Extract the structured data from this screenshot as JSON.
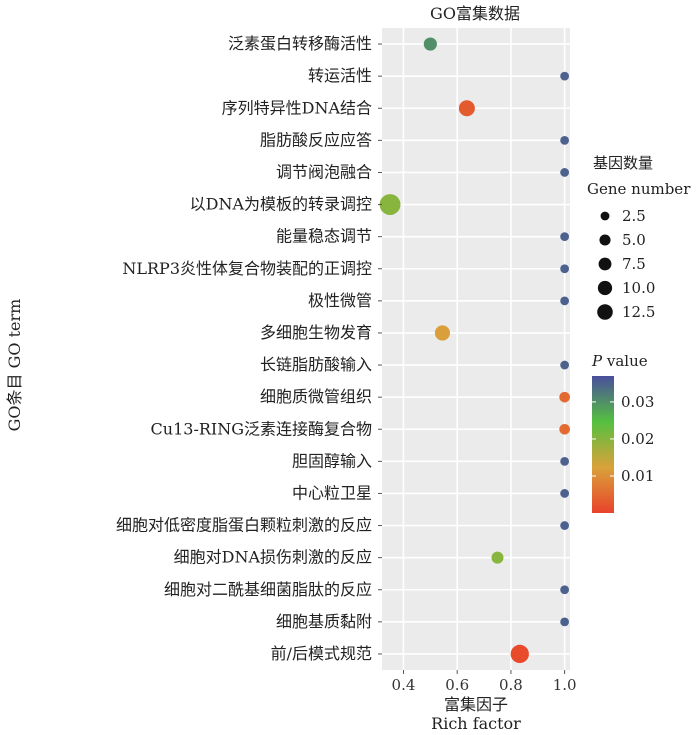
{
  "chart_data": {
    "type": "scatter",
    "title": "GO富集数据",
    "xlabel_cn": "富集因子",
    "xlabel_en": "Rich factor",
    "ylabel": "GO条目  GO term",
    "xlim": [
      0.32,
      1.02
    ],
    "x_ticks": [
      "0.4",
      "0.6",
      "0.8",
      "1.0"
    ],
    "terms": [
      "泛素蛋白转移酶活性",
      "转运活性",
      "序列特异性DNA结合",
      "脂肪酸反应应答",
      "调节阀泡融合",
      "以DNA为模板的转录调控",
      "能量稳态调节",
      "NLRP3炎性体复合物装配的正调控",
      "极性微管",
      "多细胞生物发育",
      "长链脂肪酸输入",
      "细胞质微管组织",
      "Cu13-RING泛素连接酶复合物",
      "胆固醇输入",
      "中心粒卫星",
      "细胞对低密度脂蛋白颗粒刺激的反应",
      "细胞对DNA损伤刺激的反应",
      "细胞对二酰基细菌脂肽的反应",
      "细胞基质黏附",
      "前/后模式规范"
    ],
    "points": [
      {
        "term": "泛素蛋白转移酶活性",
        "x": 0.5,
        "gene_number": 4,
        "p_value": 0.03
      },
      {
        "term": "转运活性",
        "x": 1.0,
        "gene_number": 1,
        "p_value": 0.035
      },
      {
        "term": "序列特异性DNA结合",
        "x": 0.636,
        "gene_number": 7,
        "p_value": 0.003
      },
      {
        "term": "脂肪酸反应应答",
        "x": 1.0,
        "gene_number": 1,
        "p_value": 0.035
      },
      {
        "term": "调节阀泡融合",
        "x": 1.0,
        "gene_number": 1,
        "p_value": 0.035
      },
      {
        "term": "以DNA为模板的转录调控",
        "x": 0.35,
        "gene_number": 14,
        "p_value": 0.02
      },
      {
        "term": "能量稳态调节",
        "x": 1.0,
        "gene_number": 1,
        "p_value": 0.035
      },
      {
        "term": "NLRP3炎性体复合物装配的正调控",
        "x": 1.0,
        "gene_number": 1,
        "p_value": 0.035
      },
      {
        "term": "极性微管",
        "x": 1.0,
        "gene_number": 1,
        "p_value": 0.035
      },
      {
        "term": "多细胞生物发育",
        "x": 0.545,
        "gene_number": 6,
        "p_value": 0.012
      },
      {
        "term": "长链脂肪酸输入",
        "x": 1.0,
        "gene_number": 1,
        "p_value": 0.035
      },
      {
        "term": "细胞质微管组织",
        "x": 1.0,
        "gene_number": 2,
        "p_value": 0.005
      },
      {
        "term": "Cu13-RING泛素连接酶复合物",
        "x": 1.0,
        "gene_number": 2,
        "p_value": 0.005
      },
      {
        "term": "胆固醇输入",
        "x": 1.0,
        "gene_number": 1,
        "p_value": 0.035
      },
      {
        "term": "中心粒卫星",
        "x": 1.0,
        "gene_number": 1,
        "p_value": 0.035
      },
      {
        "term": "细胞对低密度脂蛋白颗粒刺激的反应",
        "x": 1.0,
        "gene_number": 1,
        "p_value": 0.035
      },
      {
        "term": "细胞对DNA损伤刺激的反应",
        "x": 0.75,
        "gene_number": 3,
        "p_value": 0.02
      },
      {
        "term": "细胞对二酰基细菌脂肽的反应",
        "x": 1.0,
        "gene_number": 1,
        "p_value": 0.035
      },
      {
        "term": "细胞基质黏附",
        "x": 1.0,
        "gene_number": 1,
        "p_value": 0.035
      },
      {
        "term": "前/后模式规范",
        "x": 0.833,
        "gene_number": 10,
        "p_value": 0.001
      }
    ],
    "size_legend": {
      "title_cn": "基因数量",
      "title_en": "Gene number",
      "labels": [
        "2.5",
        "5.0",
        "7.5",
        "10.0",
        "12.5"
      ],
      "values": [
        2.5,
        5.0,
        7.5,
        10.0,
        12.5
      ]
    },
    "color_legend": {
      "title_italic": "P",
      "title_rest": " value",
      "labels": [
        "0.03",
        "0.02",
        "0.01"
      ],
      "values": [
        0.03,
        0.02,
        0.01
      ],
      "range": [
        0.0,
        0.037
      ],
      "colors": [
        "#e8432b",
        "#d9a23a",
        "#55c040",
        "#4a4f9c"
      ]
    },
    "grid": true,
    "panel_background": "#ebebeb",
    "legend_position": "right"
  }
}
